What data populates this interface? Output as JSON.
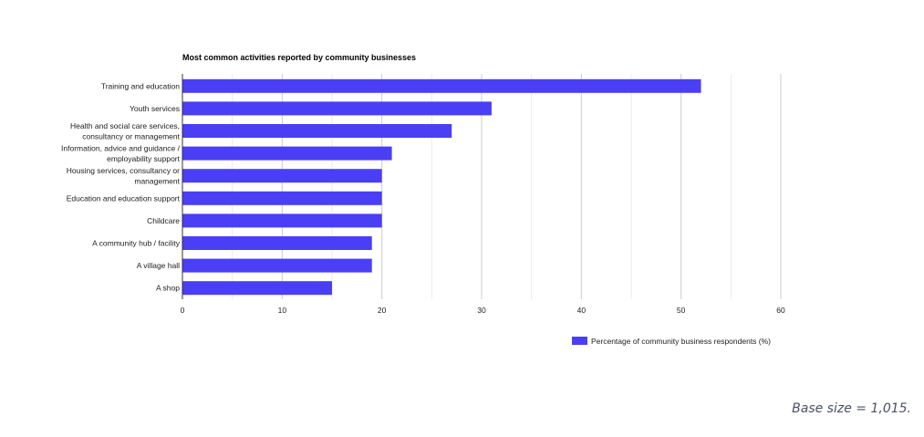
{
  "chart_data": {
    "type": "bar",
    "orientation": "horizontal",
    "title": "Most common activities reported by community businesses",
    "categories": [
      [
        "Training and education"
      ],
      [
        "Youth services"
      ],
      [
        "Health and social care services,",
        "consultancy or management"
      ],
      [
        "Information, advice and guidance /",
        "employability support"
      ],
      [
        "Housing services, consultancy or",
        "management"
      ],
      [
        "Education and education support"
      ],
      [
        "Childcare"
      ],
      [
        "A community hub / facility"
      ],
      [
        "A village hall"
      ],
      [
        "A shop"
      ]
    ],
    "series": [
      {
        "name": "Percentage of community business respondents (%)",
        "values": [
          52,
          31,
          27,
          21,
          20,
          20,
          20,
          19,
          19,
          15
        ],
        "color": "#4a3ff5"
      }
    ],
    "xlim": [
      0,
      60
    ],
    "xticks": [
      0,
      10,
      20,
      30,
      40,
      50,
      60
    ],
    "grid": true,
    "legend_position": "bottom-right"
  },
  "footnote": "Base size = 1,015."
}
